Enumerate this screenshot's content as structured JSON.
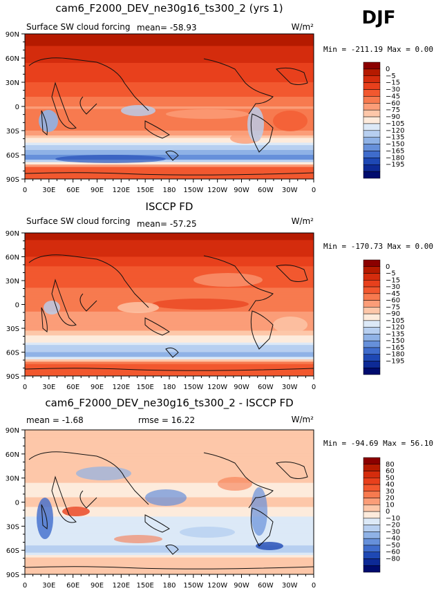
{
  "season": "DJF",
  "chart_data": [
    {
      "type": "heatmap",
      "title": "cam6_F2000_DEV_ne30g16_ts300_2 (yrs 1)",
      "left_label": "Surface SW cloud forcing",
      "center_label": "mean=  -58.93",
      "units": "W/m²",
      "minmax": "Min = -211.19 Max =    0.00",
      "xticks": [
        "0",
        "30E",
        "60E",
        "90E",
        "120E",
        "150E",
        "180",
        "150W",
        "120W",
        "90W",
        "60W",
        "30W",
        "0"
      ],
      "yticks": [
        "90N",
        "60N",
        "30N",
        "0",
        "30S",
        "60S",
        "90S"
      ],
      "levels": [
        "0",
        "−5",
        "−15",
        "−30",
        "−45",
        "−60",
        "−75",
        "−90",
        "−105",
        "−120",
        "−135",
        "−150",
        "−165",
        "−180",
        "−195"
      ],
      "colors": [
        "#8b0000",
        "#b51a00",
        "#d42c0d",
        "#e8401c",
        "#f2582f",
        "#f77a4f",
        "#fb9d78",
        "#fdc7a9",
        "#fdebdc",
        "#dce9f7",
        "#b7cff0",
        "#8fb2e6",
        "#6690da",
        "#3f6ccc",
        "#1e48b4",
        "#0d2a96",
        "#000c6e"
      ],
      "profile": [
        {
          "lat": -90,
          "v": -40
        },
        {
          "lat": -75,
          "v": -45
        },
        {
          "lat": -65,
          "v": -160
        },
        {
          "lat": -55,
          "v": -140
        },
        {
          "lat": -45,
          "v": -110
        },
        {
          "lat": -30,
          "v": -60
        },
        {
          "lat": -10,
          "v": -55
        },
        {
          "lat": 0,
          "v": -62
        },
        {
          "lat": 20,
          "v": -35
        },
        {
          "lat": 40,
          "v": -25
        },
        {
          "lat": 60,
          "v": -10
        },
        {
          "lat": 90,
          "v": 0
        }
      ]
    },
    {
      "type": "heatmap",
      "title": "ISCCP FD",
      "left_label": "Surface SW cloud forcing",
      "center_label": "mean=  -57.25",
      "units": "W/m²",
      "minmax": "Min = -170.73 Max =    0.00",
      "xticks": [
        "0",
        "30E",
        "60E",
        "90E",
        "120E",
        "150E",
        "180",
        "150W",
        "120W",
        "90W",
        "60W",
        "30W",
        "0"
      ],
      "yticks": [
        "90N",
        "60N",
        "30N",
        "0",
        "30S",
        "60S",
        "90S"
      ],
      "levels": [
        "0",
        "−5",
        "−15",
        "−30",
        "−45",
        "−60",
        "−75",
        "−90",
        "−105",
        "−120",
        "−135",
        "−150",
        "−165",
        "−180",
        "−195"
      ],
      "colors": [
        "#8b0000",
        "#b51a00",
        "#d42c0d",
        "#e8401c",
        "#f2582f",
        "#f77a4f",
        "#fb9d78",
        "#fdc7a9",
        "#fdebdc",
        "#dce9f7",
        "#b7cff0",
        "#8fb2e6",
        "#6690da",
        "#3f6ccc",
        "#1e48b4",
        "#0d2a96",
        "#000c6e"
      ],
      "profile": [
        {
          "lat": -90,
          "v": -35
        },
        {
          "lat": -75,
          "v": -40
        },
        {
          "lat": -65,
          "v": -140
        },
        {
          "lat": -55,
          "v": -130
        },
        {
          "lat": -45,
          "v": -100
        },
        {
          "lat": -30,
          "v": -70
        },
        {
          "lat": -10,
          "v": -60
        },
        {
          "lat": 0,
          "v": -60
        },
        {
          "lat": 20,
          "v": -45
        },
        {
          "lat": 40,
          "v": -40
        },
        {
          "lat": 60,
          "v": -15
        },
        {
          "lat": 90,
          "v": 0
        }
      ]
    },
    {
      "type": "heatmap",
      "title": "cam6_F2000_DEV_ne30g16_ts300_2 - ISCCP FD",
      "left_label": "mean =  -1.68",
      "center_label": "rmse =  16.22",
      "units": "W/m²",
      "minmax": "Min = -94.69 Max =  56.10",
      "xticks": [
        "0",
        "30E",
        "60E",
        "90E",
        "120E",
        "150E",
        "180",
        "150W",
        "120W",
        "90W",
        "60W",
        "30W",
        "0"
      ],
      "yticks": [
        "90N",
        "60N",
        "30N",
        "0",
        "30S",
        "60S",
        "90S"
      ],
      "levels": [
        "80",
        "60",
        "50",
        "40",
        "30",
        "20",
        "10",
        "0",
        "−10",
        "−20",
        "−30",
        "−40",
        "−50",
        "−60",
        "−80"
      ],
      "colors": [
        "#8b0000",
        "#b51a00",
        "#d42c0d",
        "#e8401c",
        "#f2582f",
        "#f77a4f",
        "#fb9d78",
        "#fdc7a9",
        "#fdebdc",
        "#dce9f7",
        "#b7cff0",
        "#8fb2e6",
        "#6690da",
        "#3f6ccc",
        "#1e48b4",
        "#0d2a96",
        "#000c6e"
      ],
      "profile": [
        {
          "lat": -90,
          "v": 5
        },
        {
          "lat": -70,
          "v": 0
        },
        {
          "lat": -60,
          "v": -25
        },
        {
          "lat": -45,
          "v": -10
        },
        {
          "lat": -25,
          "v": -15
        },
        {
          "lat": 0,
          "v": 5
        },
        {
          "lat": 15,
          "v": -10
        },
        {
          "lat": 30,
          "v": 8
        },
        {
          "lat": 50,
          "v": 2
        },
        {
          "lat": 70,
          "v": 5
        },
        {
          "lat": 90,
          "v": 5
        }
      ]
    }
  ]
}
